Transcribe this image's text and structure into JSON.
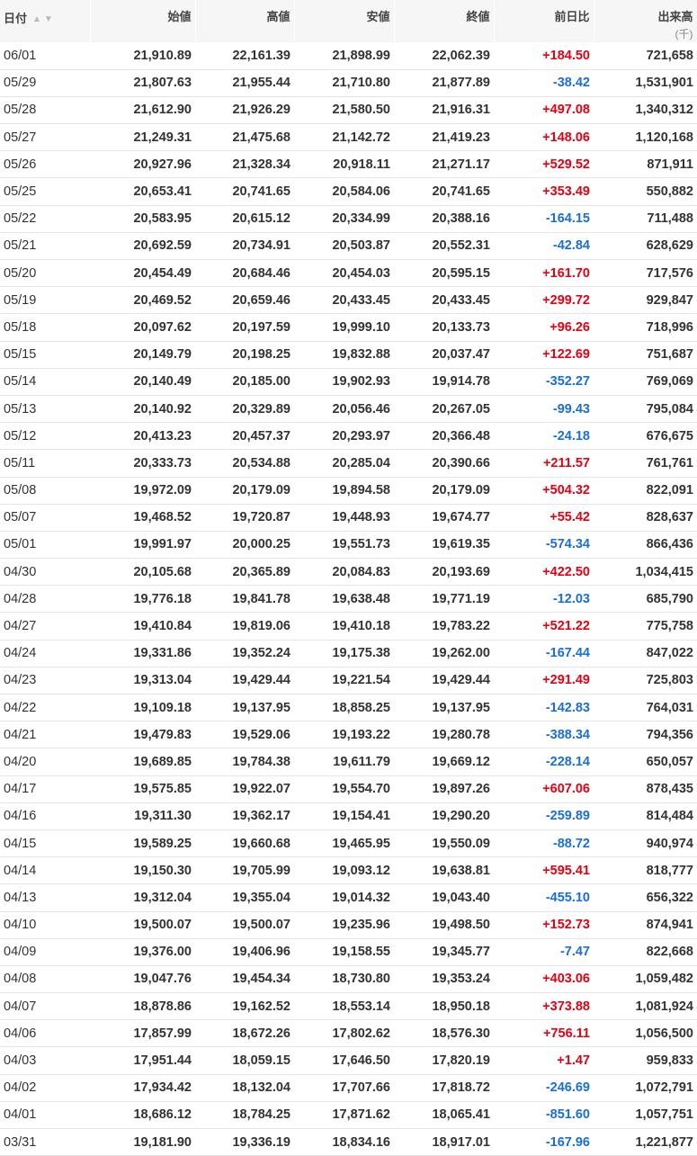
{
  "headers": {
    "date": "日付",
    "open": "始値",
    "high": "高値",
    "low": "安値",
    "close": "終値",
    "change": "前日比",
    "volume": "出来高",
    "volume_unit": "(千)"
  },
  "icons": {
    "sort_asc": "sort-ascending-icon",
    "sort_desc": "sort-descending-icon"
  },
  "colors": {
    "up": "#e60012",
    "down": "#1a6ed8",
    "header_bg": "#f6f6f6"
  },
  "rows": [
    {
      "date": "06/01",
      "open": "21,910.89",
      "high": "22,161.39",
      "low": "21,898.99",
      "close": "22,062.39",
      "change": "+184.50",
      "volume": "721,658",
      "dir": "up"
    },
    {
      "date": "05/29",
      "open": "21,807.63",
      "high": "21,955.44",
      "low": "21,710.80",
      "close": "21,877.89",
      "change": "-38.42",
      "volume": "1,531,901",
      "dir": "down"
    },
    {
      "date": "05/28",
      "open": "21,612.90",
      "high": "21,926.29",
      "low": "21,580.50",
      "close": "21,916.31",
      "change": "+497.08",
      "volume": "1,340,312",
      "dir": "up"
    },
    {
      "date": "05/27",
      "open": "21,249.31",
      "high": "21,475.68",
      "low": "21,142.72",
      "close": "21,419.23",
      "change": "+148.06",
      "volume": "1,120,168",
      "dir": "up"
    },
    {
      "date": "05/26",
      "open": "20,927.96",
      "high": "21,328.34",
      "low": "20,918.11",
      "close": "21,271.17",
      "change": "+529.52",
      "volume": "871,911",
      "dir": "up"
    },
    {
      "date": "05/25",
      "open": "20,653.41",
      "high": "20,741.65",
      "low": "20,584.06",
      "close": "20,741.65",
      "change": "+353.49",
      "volume": "550,882",
      "dir": "up"
    },
    {
      "date": "05/22",
      "open": "20,583.95",
      "high": "20,615.12",
      "low": "20,334.99",
      "close": "20,388.16",
      "change": "-164.15",
      "volume": "711,488",
      "dir": "down"
    },
    {
      "date": "05/21",
      "open": "20,692.59",
      "high": "20,734.91",
      "low": "20,503.87",
      "close": "20,552.31",
      "change": "-42.84",
      "volume": "628,629",
      "dir": "down"
    },
    {
      "date": "05/20",
      "open": "20,454.49",
      "high": "20,684.46",
      "low": "20,454.03",
      "close": "20,595.15",
      "change": "+161.70",
      "volume": "717,576",
      "dir": "up"
    },
    {
      "date": "05/19",
      "open": "20,469.52",
      "high": "20,659.46",
      "low": "20,433.45",
      "close": "20,433.45",
      "change": "+299.72",
      "volume": "929,847",
      "dir": "up"
    },
    {
      "date": "05/18",
      "open": "20,097.62",
      "high": "20,197.59",
      "low": "19,999.10",
      "close": "20,133.73",
      "change": "+96.26",
      "volume": "718,996",
      "dir": "up"
    },
    {
      "date": "05/15",
      "open": "20,149.79",
      "high": "20,198.25",
      "low": "19,832.88",
      "close": "20,037.47",
      "change": "+122.69",
      "volume": "751,687",
      "dir": "up"
    },
    {
      "date": "05/14",
      "open": "20,140.49",
      "high": "20,185.00",
      "low": "19,902.93",
      "close": "19,914.78",
      "change": "-352.27",
      "volume": "769,069",
      "dir": "down"
    },
    {
      "date": "05/13",
      "open": "20,140.92",
      "high": "20,329.89",
      "low": "20,056.46",
      "close": "20,267.05",
      "change": "-99.43",
      "volume": "795,084",
      "dir": "down"
    },
    {
      "date": "05/12",
      "open": "20,413.23",
      "high": "20,457.37",
      "low": "20,293.97",
      "close": "20,366.48",
      "change": "-24.18",
      "volume": "676,675",
      "dir": "down"
    },
    {
      "date": "05/11",
      "open": "20,333.73",
      "high": "20,534.88",
      "low": "20,285.04",
      "close": "20,390.66",
      "change": "+211.57",
      "volume": "761,761",
      "dir": "up"
    },
    {
      "date": "05/08",
      "open": "19,972.09",
      "high": "20,179.09",
      "low": "19,894.58",
      "close": "20,179.09",
      "change": "+504.32",
      "volume": "822,091",
      "dir": "up"
    },
    {
      "date": "05/07",
      "open": "19,468.52",
      "high": "19,720.87",
      "low": "19,448.93",
      "close": "19,674.77",
      "change": "+55.42",
      "volume": "828,637",
      "dir": "up"
    },
    {
      "date": "05/01",
      "open": "19,991.97",
      "high": "20,000.25",
      "low": "19,551.73",
      "close": "19,619.35",
      "change": "-574.34",
      "volume": "866,436",
      "dir": "down"
    },
    {
      "date": "04/30",
      "open": "20,105.68",
      "high": "20,365.89",
      "low": "20,084.83",
      "close": "20,193.69",
      "change": "+422.50",
      "volume": "1,034,415",
      "dir": "up"
    },
    {
      "date": "04/28",
      "open": "19,776.18",
      "high": "19,841.78",
      "low": "19,638.48",
      "close": "19,771.19",
      "change": "-12.03",
      "volume": "685,790",
      "dir": "down"
    },
    {
      "date": "04/27",
      "open": "19,410.84",
      "high": "19,819.06",
      "low": "19,410.18",
      "close": "19,783.22",
      "change": "+521.22",
      "volume": "775,758",
      "dir": "up"
    },
    {
      "date": "04/24",
      "open": "19,331.86",
      "high": "19,352.24",
      "low": "19,175.38",
      "close": "19,262.00",
      "change": "-167.44",
      "volume": "847,022",
      "dir": "down"
    },
    {
      "date": "04/23",
      "open": "19,313.04",
      "high": "19,429.44",
      "low": "19,221.54",
      "close": "19,429.44",
      "change": "+291.49",
      "volume": "725,803",
      "dir": "up"
    },
    {
      "date": "04/22",
      "open": "19,109.18",
      "high": "19,137.95",
      "low": "18,858.25",
      "close": "19,137.95",
      "change": "-142.83",
      "volume": "764,031",
      "dir": "down"
    },
    {
      "date": "04/21",
      "open": "19,479.83",
      "high": "19,529.06",
      "low": "19,193.22",
      "close": "19,280.78",
      "change": "-388.34",
      "volume": "794,356",
      "dir": "down"
    },
    {
      "date": "04/20",
      "open": "19,689.85",
      "high": "19,784.38",
      "low": "19,611.79",
      "close": "19,669.12",
      "change": "-228.14",
      "volume": "650,057",
      "dir": "down"
    },
    {
      "date": "04/17",
      "open": "19,575.85",
      "high": "19,922.07",
      "low": "19,554.70",
      "close": "19,897.26",
      "change": "+607.06",
      "volume": "878,435",
      "dir": "up"
    },
    {
      "date": "04/16",
      "open": "19,311.30",
      "high": "19,362.17",
      "low": "19,154.41",
      "close": "19,290.20",
      "change": "-259.89",
      "volume": "814,484",
      "dir": "down"
    },
    {
      "date": "04/15",
      "open": "19,589.25",
      "high": "19,660.68",
      "low": "19,465.95",
      "close": "19,550.09",
      "change": "-88.72",
      "volume": "940,974",
      "dir": "down"
    },
    {
      "date": "04/14",
      "open": "19,150.30",
      "high": "19,705.99",
      "low": "19,093.12",
      "close": "19,638.81",
      "change": "+595.41",
      "volume": "818,777",
      "dir": "up"
    },
    {
      "date": "04/13",
      "open": "19,312.04",
      "high": "19,355.04",
      "low": "19,014.32",
      "close": "19,043.40",
      "change": "-455.10",
      "volume": "656,322",
      "dir": "down"
    },
    {
      "date": "04/10",
      "open": "19,500.07",
      "high": "19,500.07",
      "low": "19,235.96",
      "close": "19,498.50",
      "change": "+152.73",
      "volume": "874,941",
      "dir": "up"
    },
    {
      "date": "04/09",
      "open": "19,376.00",
      "high": "19,406.96",
      "low": "19,158.55",
      "close": "19,345.77",
      "change": "-7.47",
      "volume": "822,668",
      "dir": "down"
    },
    {
      "date": "04/08",
      "open": "19,047.76",
      "high": "19,454.34",
      "low": "18,730.80",
      "close": "19,353.24",
      "change": "+403.06",
      "volume": "1,059,482",
      "dir": "up"
    },
    {
      "date": "04/07",
      "open": "18,878.86",
      "high": "19,162.52",
      "low": "18,553.14",
      "close": "18,950.18",
      "change": "+373.88",
      "volume": "1,081,924",
      "dir": "up"
    },
    {
      "date": "04/06",
      "open": "17,857.99",
      "high": "18,672.26",
      "low": "17,802.62",
      "close": "18,576.30",
      "change": "+756.11",
      "volume": "1,056,500",
      "dir": "up"
    },
    {
      "date": "04/03",
      "open": "17,951.44",
      "high": "18,059.15",
      "low": "17,646.50",
      "close": "17,820.19",
      "change": "+1.47",
      "volume": "959,833",
      "dir": "up"
    },
    {
      "date": "04/02",
      "open": "17,934.42",
      "high": "18,132.04",
      "low": "17,707.66",
      "close": "17,818.72",
      "change": "-246.69",
      "volume": "1,072,791",
      "dir": "down"
    },
    {
      "date": "04/01",
      "open": "18,686.12",
      "high": "18,784.25",
      "low": "17,871.62",
      "close": "18,065.41",
      "change": "-851.60",
      "volume": "1,057,751",
      "dir": "down"
    },
    {
      "date": "03/31",
      "open": "19,181.90",
      "high": "19,336.19",
      "low": "18,834.16",
      "close": "18,917.01",
      "change": "-167.96",
      "volume": "1,221,877",
      "dir": "down"
    }
  ]
}
